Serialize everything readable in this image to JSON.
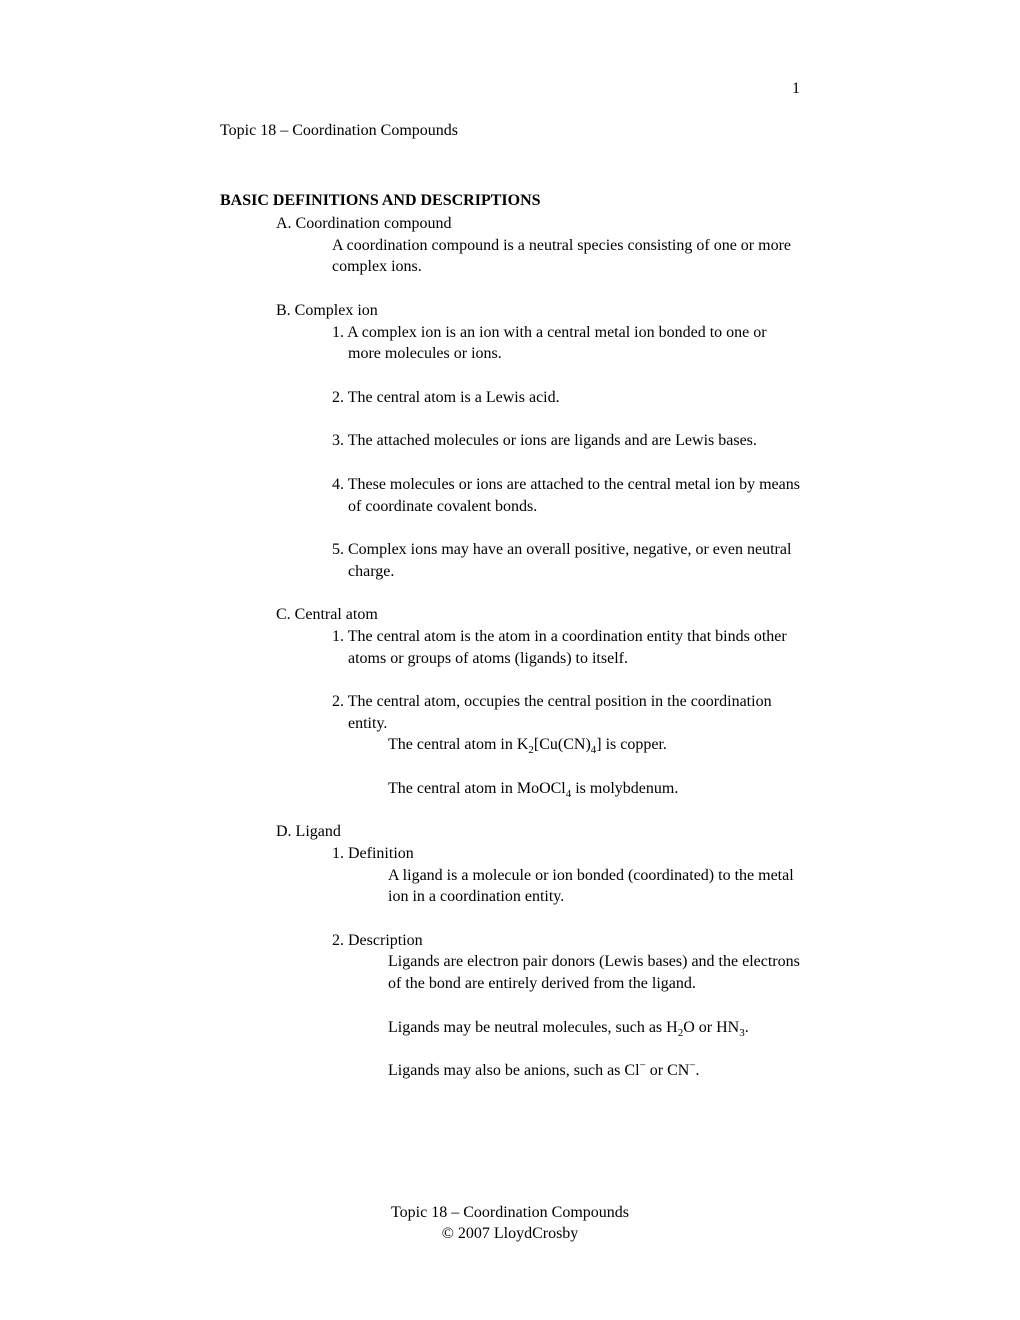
{
  "pageNumber": "1",
  "topicHeader": "Topic 18 – Coordination Compounds",
  "sectionTitle": "BASIC DEFINITIONS AND DESCRIPTIONS",
  "sectionA": {
    "label": "A. Coordination compound",
    "body": "A coordination compound is a neutral species consisting of one or more complex ions."
  },
  "sectionB": {
    "label": "B. Complex ion",
    "item1": "1. A complex ion is an ion with a central metal ion bonded to one or more molecules or ions.",
    "item2": "2. The central atom is a Lewis acid.",
    "item3": "3. The attached molecules or ions are ligands and are Lewis bases.",
    "item4": "4. These molecules or ions are attached to the central metal ion by means of coordinate covalent bonds.",
    "item5": "5. Complex ions may have an overall positive, negative, or even neutral charge."
  },
  "sectionC": {
    "label": "C. Central atom",
    "item1": "1. The central atom is the atom in a coordination entity that binds other atoms or groups of atoms (ligands) to itself.",
    "item2": "2. The central atom, occupies the central position in the coordination entity."
  },
  "sectionD": {
    "label": "D. Ligand",
    "item1label": "1.  Definition",
    "item1body": "A ligand is a molecule or ion bonded (coordinated) to the metal ion in a coordination entity.",
    "item2label": "2. Description",
    "item2body1": "Ligands are electron pair donors (Lewis bases) and the electrons of the bond are entirely derived from the ligand."
  },
  "footer": {
    "line1": "Topic 18 – Coordination Compounds",
    "line2": "© 2007 LloydCrosby"
  }
}
